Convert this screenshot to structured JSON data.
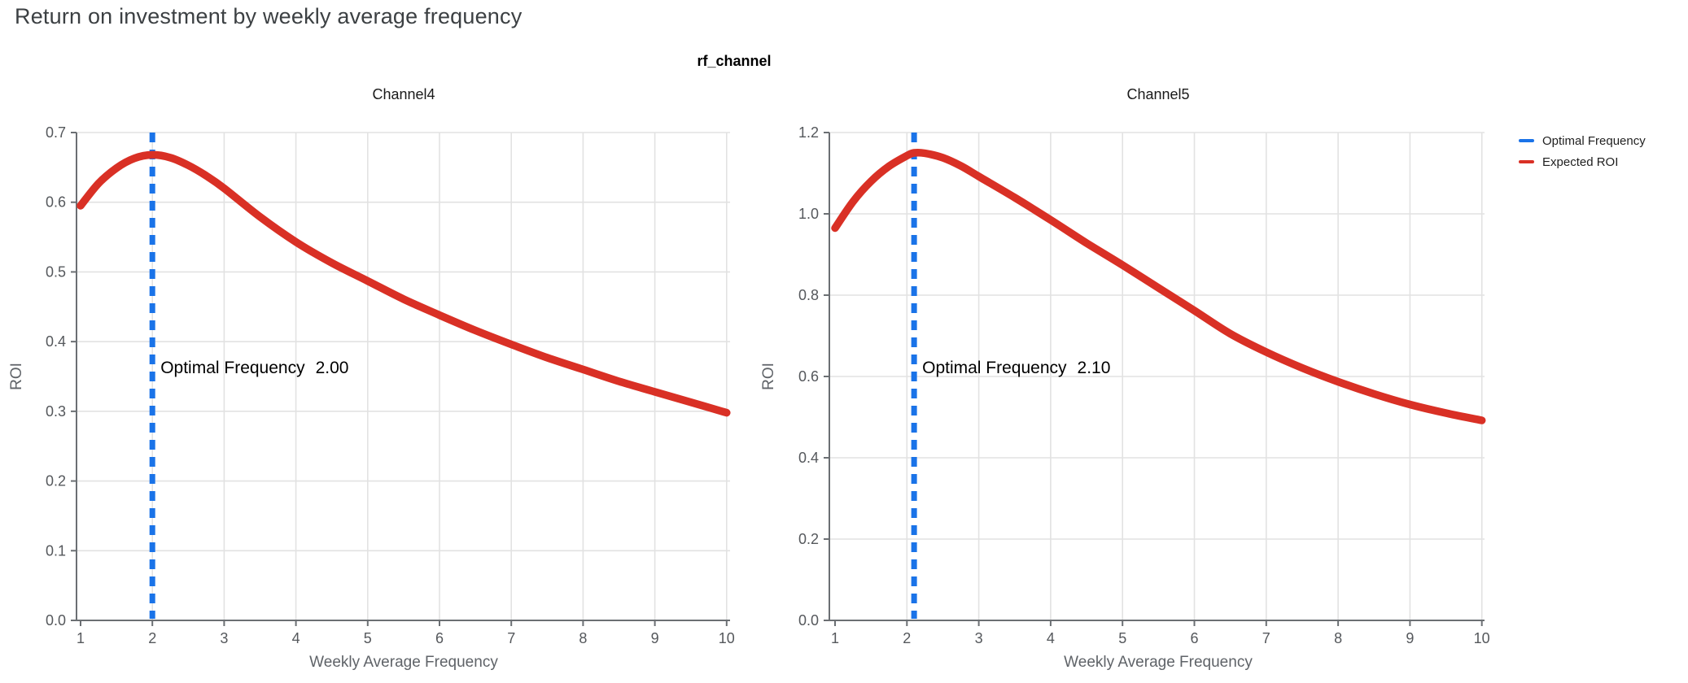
{
  "title": "Return on investment by weekly average frequency",
  "facet_title": "rf_channel",
  "legend": {
    "items": [
      {
        "label": "Optimal Frequency",
        "color": "#1a73e8"
      },
      {
        "label": "Expected ROI",
        "color": "#d93025"
      }
    ]
  },
  "colors": {
    "optimal_frequency": "#1a73e8",
    "expected_roi": "#d93025",
    "title_text": "#3c4043",
    "tick_label": "#55585c",
    "axis_title": "#5f6368",
    "gridline": "#e2e2e2",
    "axis_line": "#6b6f73",
    "annotation_text": "#000000"
  },
  "chart_data": [
    {
      "type": "line",
      "title": "Channel4",
      "xlabel": "Weekly Average Frequency",
      "ylabel": "ROI",
      "xlim": [
        1,
        10
      ],
      "ylim": [
        0,
        0.7
      ],
      "x_ticks": [
        1,
        2,
        3,
        4,
        5,
        6,
        7,
        8,
        9,
        10
      ],
      "y_tick_values": [
        0.0,
        0.1,
        0.2,
        0.3,
        0.4,
        0.5,
        0.6,
        0.7
      ],
      "y_tick_labels": [
        "0.0",
        "0.1",
        "0.2",
        "0.3",
        "0.4",
        "0.5",
        "0.6",
        "0.7"
      ],
      "grid": true,
      "legend_position": "right",
      "optimal_frequency": 2.0,
      "annotation": {
        "label": "Optimal Frequency",
        "value": "2.00"
      },
      "series": [
        {
          "name": "Expected ROI",
          "x": [
            1,
            1.25,
            1.5,
            1.75,
            2,
            2.25,
            2.5,
            2.75,
            3,
            3.5,
            4,
            4.5,
            5,
            5.5,
            6,
            6.5,
            7,
            7.5,
            8,
            8.5,
            9,
            9.5,
            10
          ],
          "y": [
            0.595,
            0.627,
            0.649,
            0.663,
            0.668,
            0.664,
            0.653,
            0.638,
            0.62,
            0.579,
            0.543,
            0.513,
            0.487,
            0.461,
            0.438,
            0.416,
            0.396,
            0.377,
            0.36,
            0.343,
            0.328,
            0.313,
            0.298
          ]
        }
      ]
    },
    {
      "type": "line",
      "title": "Channel5",
      "xlabel": "Weekly Average Frequency",
      "ylabel": "ROI",
      "xlim": [
        1,
        10
      ],
      "ylim": [
        0,
        1.2
      ],
      "x_ticks": [
        1,
        2,
        3,
        4,
        5,
        6,
        7,
        8,
        9,
        10
      ],
      "y_tick_values": [
        0.0,
        0.2,
        0.4,
        0.6,
        0.8,
        1.0,
        1.2
      ],
      "y_tick_labels": [
        "0.0",
        "0.2",
        "0.4",
        "0.6",
        "0.8",
        "1.0",
        "1.2"
      ],
      "grid": true,
      "legend_position": "right",
      "optimal_frequency": 2.1,
      "annotation": {
        "label": "Optimal Frequency",
        "value": "2.10"
      },
      "series": [
        {
          "name": "Expected ROI",
          "x": [
            1,
            1.25,
            1.5,
            1.75,
            2,
            2.1,
            2.25,
            2.5,
            2.75,
            3,
            3.5,
            4,
            4.5,
            5,
            5.5,
            6,
            6.5,
            7,
            7.5,
            8,
            8.5,
            9,
            9.5,
            10
          ],
          "y": [
            0.965,
            1.03,
            1.08,
            1.117,
            1.143,
            1.15,
            1.149,
            1.138,
            1.118,
            1.092,
            1.04,
            0.985,
            0.928,
            0.874,
            0.818,
            0.762,
            0.705,
            0.66,
            0.621,
            0.587,
            0.557,
            0.531,
            0.51,
            0.492
          ]
        }
      ]
    }
  ]
}
